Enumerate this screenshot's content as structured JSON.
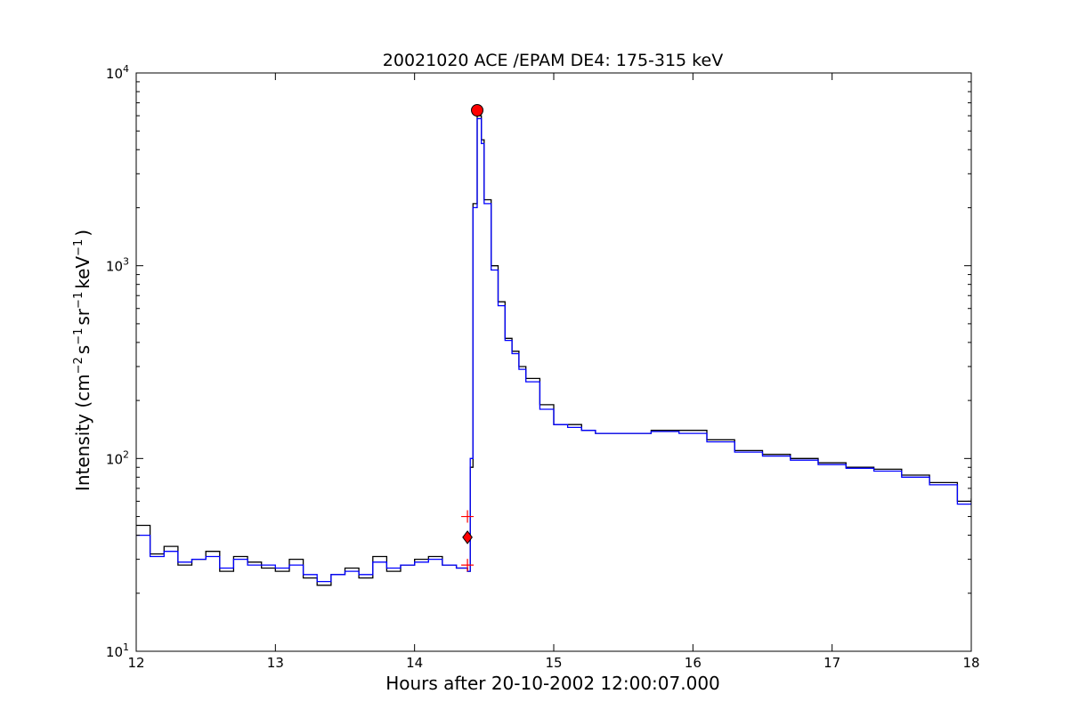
{
  "chart_data": {
    "type": "line",
    "title": "20021020 ACE /EPAM DE4: 175-315 keV",
    "xlabel": "Hours after 20-10-2002 12:00:07.000",
    "ylabel": "Intensity (cm⁻² s⁻¹ sr⁻¹ keV⁻¹ )",
    "ylabel_parts": {
      "prefix": "Intensity (cm",
      "exp1": "−2",
      "s": "s",
      "exp2": "−1",
      "sr": "sr",
      "exp3": "−1",
      "kev": "keV",
      "exp4": "−1",
      "suffix": ")"
    },
    "xlim": [
      12,
      18
    ],
    "ylim": [
      10,
      10000
    ],
    "yscale": "log",
    "grid": false,
    "x_ticks": [
      "12",
      "13",
      "14",
      "15",
      "16",
      "17",
      "18"
    ],
    "x_tick_values": [
      12,
      13,
      14,
      15,
      16,
      17,
      18
    ],
    "y_ticks": [
      {
        "base": "10",
        "exp": "1",
        "value": 10
      },
      {
        "base": "10",
        "exp": "2",
        "value": 100
      },
      {
        "base": "10",
        "exp": "3",
        "value": 1000
      },
      {
        "base": "10",
        "exp": "4",
        "value": 10000
      }
    ],
    "series": [
      {
        "role": "raw",
        "color": "#000000",
        "x": [
          12.0,
          12.1,
          12.2,
          12.3,
          12.4,
          12.5,
          12.6,
          12.7,
          12.8,
          12.9,
          13.0,
          13.1,
          13.2,
          13.3,
          13.4,
          13.5,
          13.6,
          13.7,
          13.8,
          13.9,
          14.0,
          14.1,
          14.2,
          14.3,
          14.38,
          14.4,
          14.42,
          14.45,
          14.48,
          14.5,
          14.55,
          14.6,
          14.65,
          14.7,
          14.75,
          14.8,
          14.9,
          15.0,
          15.1,
          15.2,
          15.3,
          15.5,
          15.7,
          15.9,
          16.1,
          16.3,
          16.5,
          16.7,
          16.9,
          17.1,
          17.3,
          17.5,
          17.7,
          17.9,
          18.0
        ],
        "y": [
          45,
          32,
          35,
          28,
          30,
          33,
          26,
          31,
          29,
          27,
          26,
          30,
          24,
          22,
          25,
          27,
          24,
          31,
          26,
          28,
          30,
          31,
          28,
          27,
          26,
          90,
          2100,
          6000,
          4500,
          2200,
          1000,
          650,
          420,
          360,
          300,
          260,
          190,
          150,
          150,
          140,
          135,
          135,
          140,
          140,
          125,
          110,
          105,
          100,
          95,
          90,
          88,
          82,
          75,
          60,
          62
        ]
      },
      {
        "role": "smoothed",
        "color": "#0000ff",
        "x": [
          12.0,
          12.1,
          12.2,
          12.3,
          12.4,
          12.5,
          12.6,
          12.7,
          12.8,
          12.9,
          13.0,
          13.1,
          13.2,
          13.3,
          13.4,
          13.5,
          13.6,
          13.7,
          13.8,
          13.9,
          14.0,
          14.1,
          14.2,
          14.3,
          14.38,
          14.4,
          14.42,
          14.45,
          14.48,
          14.5,
          14.55,
          14.6,
          14.65,
          14.7,
          14.75,
          14.8,
          14.9,
          15.0,
          15.1,
          15.2,
          15.3,
          15.5,
          15.7,
          15.9,
          16.1,
          16.3,
          16.5,
          16.7,
          16.9,
          17.1,
          17.3,
          17.5,
          17.7,
          17.9,
          18.0
        ],
        "y": [
          40,
          31,
          33,
          29,
          30,
          31,
          27,
          30,
          28,
          28,
          27,
          28,
          25,
          23,
          25,
          26,
          25,
          29,
          27,
          28,
          29,
          30,
          28,
          27,
          26,
          100,
          2000,
          5800,
          4300,
          2100,
          950,
          620,
          410,
          350,
          290,
          250,
          180,
          150,
          145,
          140,
          135,
          135,
          138,
          135,
          122,
          108,
          103,
          98,
          93,
          89,
          86,
          80,
          73,
          58,
          60
        ]
      }
    ],
    "markers": [
      {
        "name": "peak",
        "shape": "circle",
        "color": "#ff0000",
        "x": 14.45,
        "y": 6400
      },
      {
        "name": "onset",
        "shape": "diamond",
        "color": "#ff0000",
        "x": 14.38,
        "y": 39
      },
      {
        "name": "onset-upper",
        "shape": "plus",
        "color": "#ff0000",
        "x": 14.38,
        "y": 50
      },
      {
        "name": "onset-lower",
        "shape": "plus",
        "color": "#ff0000",
        "x": 14.38,
        "y": 28
      }
    ]
  }
}
